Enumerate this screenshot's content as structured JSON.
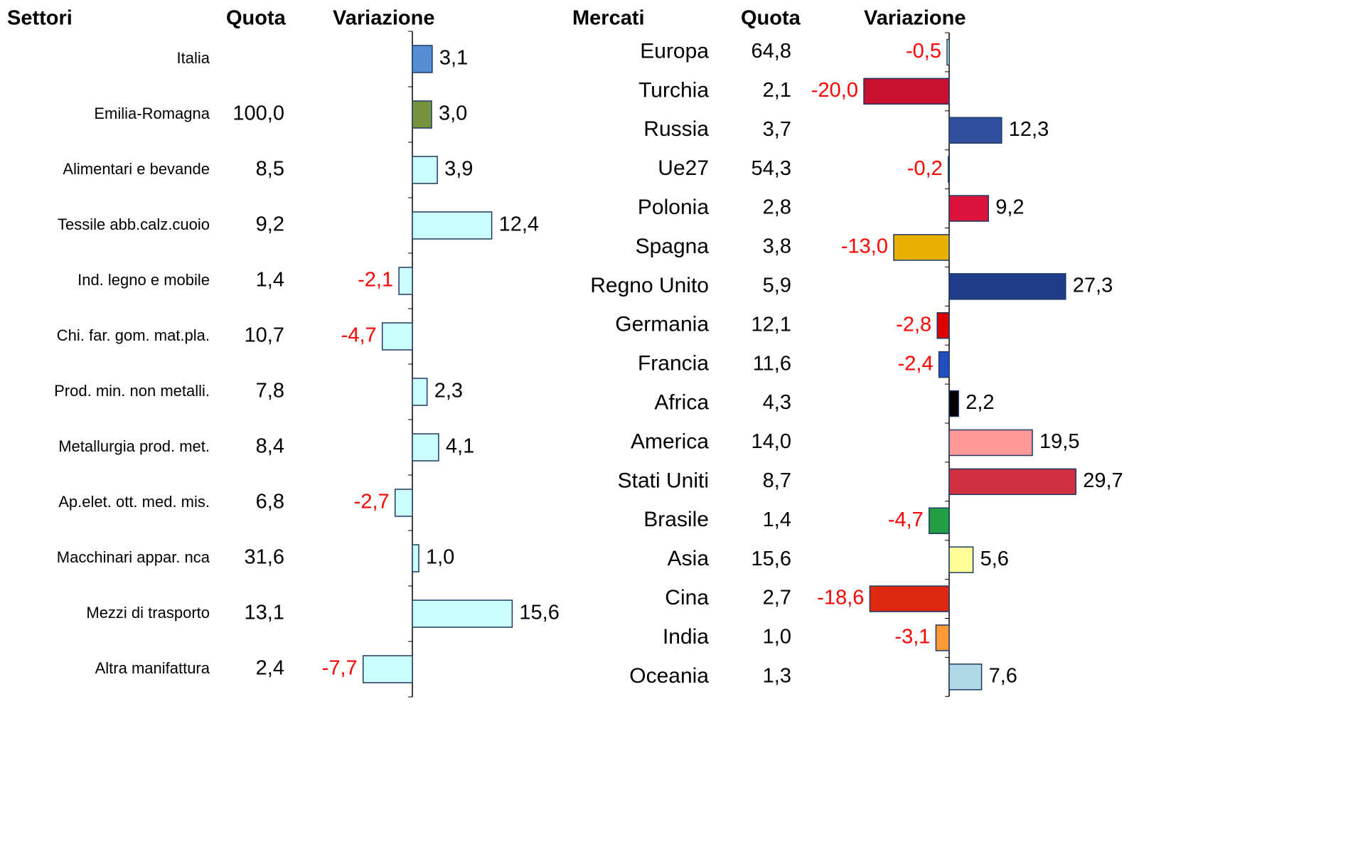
{
  "chart_data": [
    {
      "type": "bar",
      "orientation": "horizontal",
      "columns": [
        "Settori",
        "Quota",
        "Variazione"
      ],
      "categories": [
        "Italia",
        "Emilia-Romagna",
        "Alimentari e bevande",
        "Tessile abb.calz.cuoio",
        "Ind. legno e mobile",
        "Chi. far. gom. mat.pla.",
        "Prod. min. non metalli.",
        "Metallurgia prod. met.",
        "Ap.elet. ott. med. mis.",
        "Macchinari appar. nca",
        "Mezzi di trasporto",
        "Altra manifattura"
      ],
      "series": [
        {
          "name": "Quota",
          "values": [
            null,
            100.0,
            8.5,
            9.2,
            1.4,
            10.7,
            7.8,
            8.4,
            6.8,
            31.6,
            13.1,
            2.4
          ],
          "value_labels": [
            null,
            "100,0",
            "8,5",
            "9,2",
            "1,4",
            "10,7",
            "7,8",
            "8,4",
            "6,8",
            "31,6",
            "13,1",
            "2,4"
          ]
        },
        {
          "name": "Variazione",
          "values": [
            3.1,
            3.0,
            3.9,
            12.4,
            -2.1,
            -4.7,
            2.3,
            4.1,
            -2.7,
            1.0,
            15.6,
            -7.7
          ],
          "value_labels": [
            "3,1",
            "3,0",
            "3,9",
            "12,4",
            "-2,1",
            "-4,7",
            "2,3",
            "4,1",
            "-2,7",
            "1,0",
            "15,6",
            "-7,7"
          ],
          "colors": [
            "#558ed5",
            "#77933c",
            "#ccffff",
            "#ccffff",
            "#ccffff",
            "#ccffff",
            "#ccffff",
            "#ccffff",
            "#ccffff",
            "#ccffff",
            "#ccffff",
            "#ccffff"
          ]
        }
      ],
      "xlim": [
        -10,
        20
      ],
      "negative_label_color": "#ff0000"
    },
    {
      "type": "bar",
      "orientation": "horizontal",
      "columns": [
        "Mercati",
        "Quota",
        "Variazione"
      ],
      "categories": [
        "Europa",
        "Turchia",
        "Russia",
        "Ue27",
        "Polonia",
        "Spagna",
        "Regno Unito",
        "Germania",
        "Francia",
        "Africa",
        "America",
        "Stati Uniti",
        "Brasile",
        "Asia",
        "Cina",
        "India",
        "Oceania"
      ],
      "series": [
        {
          "name": "Quota",
          "values": [
            64.8,
            2.1,
            3.7,
            54.3,
            2.8,
            3.8,
            5.9,
            12.1,
            11.6,
            4.3,
            14.0,
            8.7,
            1.4,
            15.6,
            2.7,
            1.0,
            1.3
          ],
          "value_labels": [
            "64,8",
            "2,1",
            "3,7",
            "54,3",
            "2,8",
            "3,8",
            "5,9",
            "12,1",
            "11,6",
            "4,3",
            "14,0",
            "8,7",
            "1,4",
            "15,6",
            "2,7",
            "1,0",
            "1,3"
          ]
        },
        {
          "name": "Variazione",
          "values": [
            -0.5,
            -20.0,
            12.3,
            -0.2,
            9.2,
            -13.0,
            27.3,
            -2.8,
            -2.4,
            2.2,
            19.5,
            29.7,
            -4.7,
            5.6,
            -18.6,
            -3.1,
            7.6
          ],
          "value_labels": [
            "-0,5",
            "-20,0",
            "12,3",
            "-0,2",
            "9,2",
            "-13,0",
            "27,3",
            "-2,8",
            "-2,4",
            "2,2",
            "19,5",
            "29,7",
            "-4,7",
            "5,6",
            "-18,6",
            "-3,1",
            "7,6"
          ],
          "colors": [
            "#ccffcc",
            "#c8102e",
            "#3050a0",
            "#808000",
            "#dc143c",
            "#e8b000",
            "#1f3c88",
            "#dd0000",
            "#2050c0",
            "#000000",
            "#ff9999",
            "#d03040",
            "#229e45",
            "#ffff99",
            "#de2910",
            "#ff9933",
            "#add8e6"
          ]
        }
      ],
      "xlim": [
        -20,
        30
      ],
      "negative_label_color": "#ff0000"
    }
  ]
}
